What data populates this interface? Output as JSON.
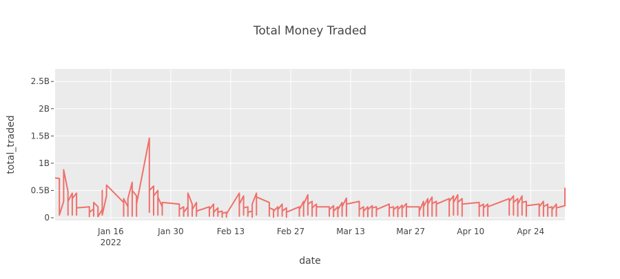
{
  "chart_data": {
    "type": "line",
    "title": "Total Money Traded",
    "xlabel": "date",
    "ylabel": "total_traded",
    "x_axis_type": "date",
    "xlim": [
      "2022-01-03",
      "2022-05-02"
    ],
    "ylim": [
      -50000000.0,
      2730000000.0
    ],
    "x_ticks": [
      {
        "date": "2022-01-16",
        "label": "Jan 16",
        "sublabel": "2022"
      },
      {
        "date": "2022-01-30",
        "label": "Jan 30",
        "sublabel": ""
      },
      {
        "date": "2022-02-13",
        "label": "Feb 13",
        "sublabel": ""
      },
      {
        "date": "2022-02-27",
        "label": "Feb 27",
        "sublabel": ""
      },
      {
        "date": "2022-03-13",
        "label": "Mar 13",
        "sublabel": ""
      },
      {
        "date": "2022-03-27",
        "label": "Mar 27",
        "sublabel": ""
      },
      {
        "date": "2022-04-10",
        "label": "Apr 10",
        "sublabel": ""
      },
      {
        "date": "2022-04-24",
        "label": "Apr 24",
        "sublabel": ""
      }
    ],
    "y_ticks": [
      {
        "value": 0,
        "label": "0"
      },
      {
        "value": 500000000.0,
        "label": "0.5B"
      },
      {
        "value": 1000000000.0,
        "label": "1B"
      },
      {
        "value": 1500000000.0,
        "label": "1.5B"
      },
      {
        "value": 2000000000.0,
        "label": "2B"
      },
      {
        "value": 2500000000.0,
        "label": "2.5B"
      }
    ],
    "grid": true,
    "legend": "none",
    "series": [
      {
        "color": "#ef6f6a",
        "x": [
          "2022-01-03",
          "2022-01-04",
          "2022-01-04",
          "2022-01-05",
          "2022-01-05",
          "2022-01-05",
          "2022-01-06",
          "2022-01-06",
          "2022-01-06",
          "2022-01-07",
          "2022-01-07",
          "2022-01-07",
          "2022-01-08",
          "2022-01-08",
          "2022-01-08",
          "2022-01-11",
          "2022-01-11",
          "2022-01-11",
          "2022-01-12",
          "2022-01-12",
          "2022-01-12",
          "2022-01-13",
          "2022-01-13",
          "2022-01-14",
          "2022-01-14",
          "2022-01-14",
          "2022-01-15",
          "2022-01-15",
          "2022-01-19",
          "2022-01-19",
          "2022-01-19",
          "2022-01-20",
          "2022-01-20",
          "2022-01-20",
          "2022-01-21",
          "2022-01-21",
          "2022-01-21",
          "2022-01-22",
          "2022-01-22",
          "2022-01-22",
          "2022-01-25",
          "2022-01-25",
          "2022-01-25",
          "2022-01-26",
          "2022-01-26",
          "2022-01-26",
          "2022-01-27",
          "2022-01-27",
          "2022-01-27",
          "2022-01-28",
          "2022-01-28",
          "2022-01-28",
          "2022-02-01",
          "2022-02-01",
          "2022-02-01",
          "2022-02-02",
          "2022-02-02",
          "2022-02-02",
          "2022-02-03",
          "2022-02-03",
          "2022-02-03",
          "2022-02-04",
          "2022-02-04",
          "2022-02-04",
          "2022-02-05",
          "2022-02-05",
          "2022-02-05",
          "2022-02-08",
          "2022-02-08",
          "2022-02-08",
          "2022-02-09",
          "2022-02-09",
          "2022-02-09",
          "2022-02-10",
          "2022-02-10",
          "2022-02-10",
          "2022-02-11",
          "2022-02-11",
          "2022-02-11",
          "2022-02-12",
          "2022-02-12",
          "2022-02-12",
          "2022-02-15",
          "2022-02-15",
          "2022-02-15",
          "2022-02-16",
          "2022-02-16",
          "2022-02-16",
          "2022-02-17",
          "2022-02-17",
          "2022-02-17",
          "2022-02-18",
          "2022-02-18",
          "2022-02-18",
          "2022-02-19",
          "2022-02-19",
          "2022-02-19",
          "2022-02-22",
          "2022-02-22",
          "2022-02-22",
          "2022-02-23",
          "2022-02-23",
          "2022-02-23",
          "2022-02-24",
          "2022-02-24",
          "2022-02-24",
          "2022-02-25",
          "2022-02-25",
          "2022-02-25",
          "2022-02-26",
          "2022-02-26",
          "2022-02-26",
          "2022-03-01",
          "2022-03-01",
          "2022-03-01",
          "2022-03-02",
          "2022-03-02",
          "2022-03-02",
          "2022-03-03",
          "2022-03-03",
          "2022-03-03",
          "2022-03-04",
          "2022-03-04",
          "2022-03-04",
          "2022-03-05",
          "2022-03-05",
          "2022-03-05",
          "2022-03-08",
          "2022-03-08",
          "2022-03-08",
          "2022-03-09",
          "2022-03-09",
          "2022-03-09",
          "2022-03-10",
          "2022-03-10",
          "2022-03-10",
          "2022-03-11",
          "2022-03-11",
          "2022-03-11",
          "2022-03-12",
          "2022-03-12",
          "2022-03-12",
          "2022-03-15",
          "2022-03-15",
          "2022-03-15",
          "2022-03-16",
          "2022-03-16",
          "2022-03-16",
          "2022-03-17",
          "2022-03-17",
          "2022-03-17",
          "2022-03-18",
          "2022-03-18",
          "2022-03-18",
          "2022-03-19",
          "2022-03-19",
          "2022-03-19",
          "2022-03-22",
          "2022-03-22",
          "2022-03-22",
          "2022-03-23",
          "2022-03-23",
          "2022-03-23",
          "2022-03-24",
          "2022-03-24",
          "2022-03-24",
          "2022-03-25",
          "2022-03-25",
          "2022-03-25",
          "2022-03-26",
          "2022-03-26",
          "2022-03-26",
          "2022-03-29",
          "2022-03-29",
          "2022-03-29",
          "2022-03-30",
          "2022-03-30",
          "2022-03-30",
          "2022-03-31",
          "2022-03-31",
          "2022-03-31",
          "2022-04-01",
          "2022-04-01",
          "2022-04-01",
          "2022-04-02",
          "2022-04-02",
          "2022-04-02",
          "2022-04-05",
          "2022-04-05",
          "2022-04-05",
          "2022-04-06",
          "2022-04-06",
          "2022-04-06",
          "2022-04-07",
          "2022-04-07",
          "2022-04-07",
          "2022-04-08",
          "2022-04-08",
          "2022-04-08",
          "2022-04-12",
          "2022-04-12",
          "2022-04-12",
          "2022-04-13",
          "2022-04-13",
          "2022-04-13",
          "2022-04-14",
          "2022-04-14",
          "2022-04-14",
          "2022-04-19",
          "2022-04-19",
          "2022-04-19",
          "2022-04-20",
          "2022-04-20",
          "2022-04-20",
          "2022-04-21",
          "2022-04-21",
          "2022-04-21",
          "2022-04-22",
          "2022-04-22",
          "2022-04-22",
          "2022-04-23",
          "2022-04-23",
          "2022-04-23",
          "2022-04-26",
          "2022-04-26",
          "2022-04-26",
          "2022-04-27",
          "2022-04-27",
          "2022-04-27",
          "2022-04-28",
          "2022-04-28",
          "2022-04-28",
          "2022-04-29",
          "2022-04-29",
          "2022-04-29",
          "2022-04-30",
          "2022-04-30",
          "2022-04-30",
          "2022-05-02",
          "2022-05-02"
        ],
        "y": [
          730000000.0,
          720000000.0,
          50000000.0,
          300000000.0,
          750000000.0,
          880000000.0,
          480000000.0,
          50000000.0,
          300000000.0,
          450000000.0,
          50000000.0,
          350000000.0,
          450000000.0,
          50000000.0,
          180000000.0,
          200000000.0,
          20000000.0,
          100000000.0,
          160000000.0,
          30000000.0,
          280000000.0,
          200000000.0,
          20000000.0,
          150000000.0,
          500000000.0,
          50000000.0,
          400000000.0,
          600000000.0,
          280000000.0,
          30000000.0,
          350000000.0,
          200000000.0,
          30000000.0,
          350000000.0,
          650000000.0,
          30000000.0,
          500000000.0,
          400000000.0,
          30000000.0,
          250000000.0,
          1460000000.0,
          100000000.0,
          500000000.0,
          580000000.0,
          50000000.0,
          400000000.0,
          500000000.0,
          50000000.0,
          380000000.0,
          200000000.0,
          50000000.0,
          280000000.0,
          250000000.0,
          30000000.0,
          150000000.0,
          200000000.0,
          30000000.0,
          100000000.0,
          200000000.0,
          30000000.0,
          450000000.0,
          250000000.0,
          30000000.0,
          150000000.0,
          280000000.0,
          30000000.0,
          120000000.0,
          200000000.0,
          30000000.0,
          150000000.0,
          250000000.0,
          30000000.0,
          100000000.0,
          180000000.0,
          30000000.0,
          100000000.0,
          120000000.0,
          10000000.0,
          80000000.0,
          100000000.0,
          10000000.0,
          70000000.0,
          450000000.0,
          30000000.0,
          250000000.0,
          400000000.0,
          50000000.0,
          180000000.0,
          200000000.0,
          30000000.0,
          100000000.0,
          120000000.0,
          10000000.0,
          250000000.0,
          450000000.0,
          50000000.0,
          380000000.0,
          280000000.0,
          30000000.0,
          180000000.0,
          150000000.0,
          10000000.0,
          120000000.0,
          200000000.0,
          30000000.0,
          150000000.0,
          250000000.0,
          30000000.0,
          120000000.0,
          180000000.0,
          10000000.0,
          100000000.0,
          200000000.0,
          30000000.0,
          150000000.0,
          300000000.0,
          30000000.0,
          250000000.0,
          420000000.0,
          50000000.0,
          250000000.0,
          300000000.0,
          30000000.0,
          180000000.0,
          250000000.0,
          30000000.0,
          200000000.0,
          200000000.0,
          30000000.0,
          150000000.0,
          220000000.0,
          20000000.0,
          120000000.0,
          200000000.0,
          20000000.0,
          150000000.0,
          280000000.0,
          30000000.0,
          200000000.0,
          360000000.0,
          30000000.0,
          250000000.0,
          300000000.0,
          30000000.0,
          150000000.0,
          200000000.0,
          20000000.0,
          120000000.0,
          200000000.0,
          20000000.0,
          150000000.0,
          220000000.0,
          20000000.0,
          180000000.0,
          200000000.0,
          30000000.0,
          150000000.0,
          250000000.0,
          30000000.0,
          180000000.0,
          200000000.0,
          30000000.0,
          150000000.0,
          210000000.0,
          20000000.0,
          150000000.0,
          230000000.0,
          20000000.0,
          170000000.0,
          260000000.0,
          20000000.0,
          200000000.0,
          200000000.0,
          30000000.0,
          120000000.0,
          300000000.0,
          30000000.0,
          200000000.0,
          350000000.0,
          30000000.0,
          250000000.0,
          380000000.0,
          30000000.0,
          260000000.0,
          300000000.0,
          30000000.0,
          250000000.0,
          350000000.0,
          30000000.0,
          300000000.0,
          400000000.0,
          50000000.0,
          280000000.0,
          420000000.0,
          50000000.0,
          280000000.0,
          350000000.0,
          30000000.0,
          250000000.0,
          280000000.0,
          30000000.0,
          200000000.0,
          250000000.0,
          30000000.0,
          180000000.0,
          250000000.0,
          30000000.0,
          200000000.0,
          350000000.0,
          50000000.0,
          300000000.0,
          400000000.0,
          50000000.0,
          280000000.0,
          350000000.0,
          30000000.0,
          250000000.0,
          400000000.0,
          50000000.0,
          280000000.0,
          300000000.0,
          30000000.0,
          220000000.0,
          250000000.0,
          30000000.0,
          200000000.0,
          300000000.0,
          30000000.0,
          200000000.0,
          250000000.0,
          30000000.0,
          180000000.0,
          200000000.0,
          30000000.0,
          150000000.0,
          250000000.0,
          30000000.0,
          180000000.0,
          220000000.0,
          550000000.0
        ]
      }
    ]
  }
}
